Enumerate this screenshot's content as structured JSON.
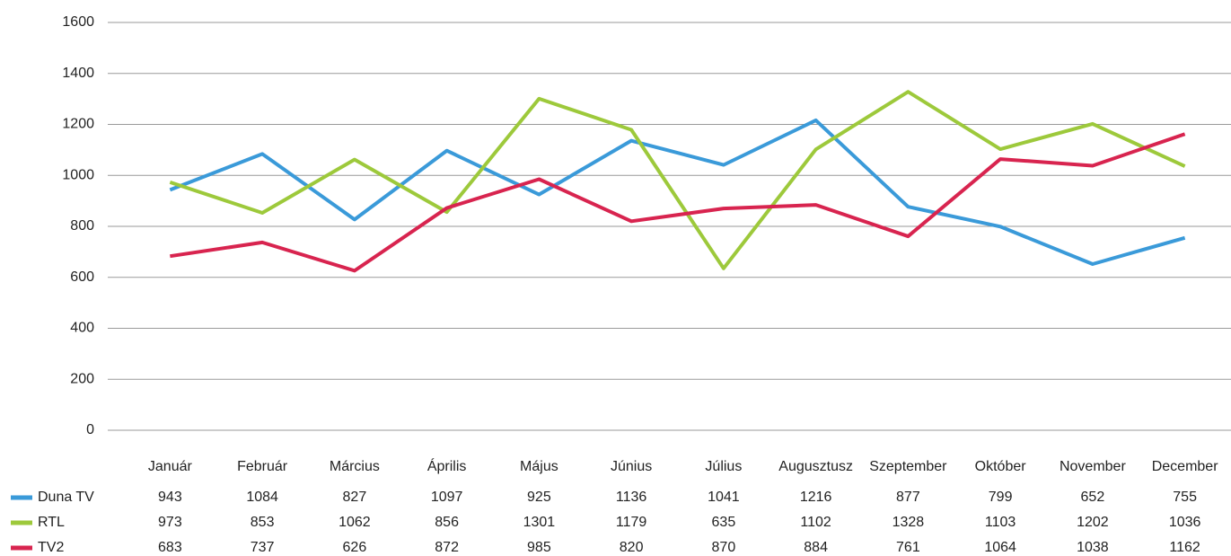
{
  "chart_data": {
    "type": "line",
    "categories": [
      "Január",
      "Február",
      "Március",
      "Április",
      "Május",
      "Június",
      "Július",
      "Augusztusz",
      "Szeptember",
      "Október",
      "November",
      "December"
    ],
    "series": [
      {
        "name": "Duna TV",
        "color": "#3a9ad9",
        "values": [
          943,
          1084,
          827,
          1097,
          925,
          1136,
          1041,
          1216,
          877,
          799,
          652,
          755
        ]
      },
      {
        "name": "RTL",
        "color": "#9dc93b",
        "values": [
          973,
          853,
          1062,
          856,
          1301,
          1179,
          635,
          1102,
          1328,
          1103,
          1202,
          1036
        ]
      },
      {
        "name": "TV2",
        "color": "#d8244f",
        "values": [
          683,
          737,
          626,
          872,
          985,
          820,
          870,
          884,
          761,
          1064,
          1038,
          1162
        ]
      }
    ],
    "ylim": [
      0,
      1600
    ],
    "yticks": [
      0,
      200,
      400,
      600,
      800,
      1000,
      1200,
      1400,
      1600
    ],
    "grid": true
  }
}
